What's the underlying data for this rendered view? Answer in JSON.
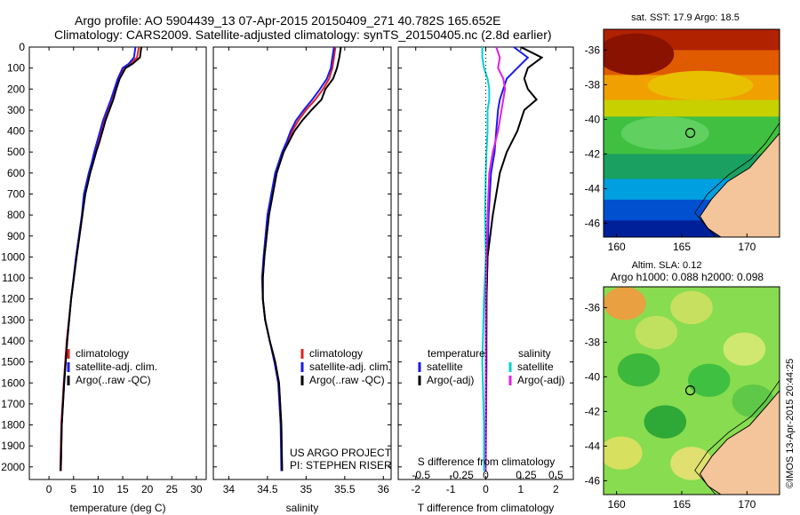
{
  "header": {
    "title_line1": "Argo profile: AO 5904439_13 07-Apr-2015 20150409_271 40.782S 165.652E",
    "title_line2": "Climatology: CARS2009. Satellite-adjusted climatology: synTS_20150405.nc (2.8d earlier)"
  },
  "chart_data": [
    {
      "type": "line",
      "xlabel": "temperature (deg C)",
      "ylabel": "",
      "xlim": [
        -4,
        32
      ],
      "ylim": [
        2060,
        0
      ],
      "xticks": [
        0,
        5,
        10,
        15,
        20,
        25,
        30
      ],
      "yticks": [
        0,
        100,
        200,
        300,
        400,
        500,
        600,
        700,
        800,
        900,
        1000,
        1100,
        1200,
        1300,
        1400,
        1500,
        1600,
        1700,
        1800,
        1900,
        2000
      ],
      "legend": [
        "climatology",
        "satellite-adj. clim.",
        "Argo(..raw -QC)"
      ],
      "series": [
        {
          "name": "climatology",
          "color": "#e02020",
          "x": [
            18.3,
            17.9,
            16.5,
            15.2,
            14.2,
            13.5,
            12.7,
            12.0,
            11.2,
            10.6,
            10.0,
            9.3,
            8.8,
            8.2,
            7.7,
            7.2,
            6.8,
            5.6,
            4.5,
            3.6,
            3.0,
            2.5,
            2.3
          ],
          "y": [
            0,
            50,
            80,
            100,
            150,
            200,
            250,
            300,
            350,
            400,
            450,
            500,
            550,
            600,
            650,
            700,
            800,
            1000,
            1200,
            1400,
            1600,
            1800,
            2020
          ]
        },
        {
          "name": "satellite-adj. clim.",
          "color": "#1a1aee",
          "x": [
            17.6,
            17.3,
            16.2,
            15.0,
            14.0,
            13.3,
            12.6,
            11.8,
            11.0,
            10.4,
            9.8,
            9.2,
            8.7,
            8.1,
            7.6,
            7.1,
            6.7,
            5.5,
            4.5,
            3.7,
            3.1,
            2.6,
            2.4
          ],
          "y": [
            0,
            50,
            80,
            100,
            150,
            200,
            250,
            300,
            350,
            400,
            450,
            500,
            550,
            600,
            650,
            700,
            800,
            1000,
            1200,
            1400,
            1600,
            1800,
            2020
          ]
        },
        {
          "name": "Argo(..raw -QC)",
          "color": "#000000",
          "x": [
            18.8,
            18.5,
            17.0,
            15.6,
            14.4,
            13.7,
            13.1,
            12.3,
            11.5,
            10.9,
            10.3,
            9.6,
            9.0,
            8.4,
            7.9,
            7.4,
            6.8,
            5.6,
            4.5,
            3.7,
            3.1,
            2.6,
            2.4
          ],
          "y": [
            0,
            50,
            80,
            100,
            150,
            200,
            250,
            300,
            350,
            400,
            450,
            500,
            550,
            600,
            650,
            700,
            800,
            1000,
            1200,
            1400,
            1600,
            1800,
            2020
          ]
        }
      ]
    },
    {
      "type": "line",
      "xlabel": "salinity",
      "ylabel": "",
      "xlim": [
        33.8,
        36.1
      ],
      "ylim": [
        2060,
        0
      ],
      "xticks": [
        34,
        34.5,
        35,
        35.5,
        36
      ],
      "yticks": [],
      "legend": [
        "climatology",
        "satellite-adj. clim.",
        "Argo(..raw -QC)"
      ],
      "annotations": [
        "US ARGO PROJECT",
        "PI: STEPHEN RISER"
      ],
      "series": [
        {
          "name": "climatology",
          "color": "#e02020",
          "x": [
            35.38,
            35.36,
            35.34,
            35.3,
            35.22,
            35.12,
            35.0,
            34.9,
            34.82,
            34.77,
            34.7,
            34.62,
            34.52,
            34.46,
            34.44,
            34.44,
            34.47,
            34.53,
            34.6,
            34.65,
            34.68,
            34.69
          ],
          "y": [
            0,
            50,
            100,
            150,
            200,
            250,
            300,
            350,
            400,
            450,
            500,
            600,
            800,
            1000,
            1100,
            1200,
            1300,
            1400,
            1500,
            1600,
            1800,
            2020
          ]
        },
        {
          "name": "satellite-adj. clim.",
          "color": "#1a1aee",
          "x": [
            35.36,
            35.34,
            35.32,
            35.27,
            35.18,
            35.08,
            34.97,
            34.87,
            34.8,
            34.75,
            34.69,
            34.6,
            34.5,
            34.45,
            34.43,
            34.44,
            34.47,
            34.53,
            34.59,
            34.64,
            34.67,
            34.68
          ],
          "y": [
            0,
            50,
            100,
            150,
            200,
            250,
            300,
            350,
            400,
            450,
            500,
            600,
            800,
            1000,
            1100,
            1200,
            1300,
            1400,
            1500,
            1600,
            1800,
            2020
          ]
        },
        {
          "name": "Argo(..raw -QC)",
          "color": "#000000",
          "x": [
            35.45,
            35.43,
            35.4,
            35.35,
            35.25,
            35.2,
            35.07,
            34.95,
            34.85,
            34.78,
            34.71,
            34.62,
            34.52,
            34.46,
            34.44,
            34.44,
            34.47,
            34.53,
            34.6,
            34.65,
            34.68,
            34.69
          ],
          "y": [
            0,
            50,
            100,
            150,
            200,
            250,
            300,
            350,
            400,
            450,
            500,
            600,
            800,
            1000,
            1100,
            1200,
            1300,
            1400,
            1500,
            1600,
            1800,
            2020
          ]
        }
      ]
    },
    {
      "type": "line",
      "xlabel": "T difference from climatology",
      "xlabel_top": "S difference from climatology",
      "ylabel": "",
      "xlim": [
        -2.5,
        2.5
      ],
      "ylim": [
        2060,
        0
      ],
      "xticks": [
        -2,
        -1,
        0,
        1,
        2
      ],
      "xticks_S": [
        "-0.5",
        "-0.25",
        "0",
        "0.25",
        "0.5"
      ],
      "yticks": [],
      "legend_groups": [
        {
          "title": "temperature",
          "items": [
            "satellite",
            "Argo(-adj)"
          ]
        },
        {
          "title": "salinity",
          "items": [
            "satellite",
            "Argo(-adj)"
          ]
        }
      ],
      "series": [
        {
          "name": "temperature satellite",
          "color": "#1a1aee",
          "x": [
            0.8,
            1.2,
            0.9,
            0.6,
            0.5,
            0.4,
            0.35,
            0.3,
            0.25,
            0.15,
            0.08,
            0.05,
            0.02,
            0.02,
            0.01,
            0.0
          ],
          "y": [
            0,
            50,
            100,
            150,
            200,
            250,
            300,
            400,
            500,
            600,
            800,
            1000,
            1200,
            1500,
            1800,
            2020
          ]
        },
        {
          "name": "temperature Argo(-adj)",
          "color": "#000000",
          "x": [
            1.0,
            1.6,
            1.2,
            1.1,
            1.2,
            1.45,
            1.1,
            0.9,
            0.6,
            0.4,
            0.2,
            0.05,
            0.02,
            0.01,
            0.0,
            0.0
          ],
          "y": [
            0,
            50,
            100,
            150,
            200,
            250,
            300,
            400,
            500,
            600,
            800,
            1000,
            1200,
            1500,
            1800,
            2020
          ]
        },
        {
          "name": "salinity satellite",
          "color": "#00d0d0",
          "x": [
            -0.1,
            -0.1,
            -0.05,
            0.05,
            0.1,
            0.1,
            0.05,
            0.05,
            0.02,
            0.0,
            -0.02,
            0.0,
            -0.05,
            -0.1,
            -0.05,
            -0.05
          ],
          "y": [
            0,
            50,
            100,
            150,
            200,
            250,
            300,
            400,
            500,
            600,
            800,
            1000,
            1200,
            1500,
            1800,
            2020
          ]
        },
        {
          "name": "salinity Argo(-adj)",
          "color": "#e020e0",
          "x": [
            0.3,
            0.4,
            0.35,
            0.5,
            0.55,
            0.5,
            0.45,
            0.35,
            0.2,
            0.1,
            0.05,
            0.02,
            0.0,
            0.0,
            0.0,
            0.0
          ],
          "y": [
            0,
            50,
            100,
            150,
            200,
            250,
            300,
            400,
            500,
            600,
            800,
            1000,
            1200,
            1500,
            1800,
            2020
          ]
        }
      ]
    },
    {
      "type": "heatmap",
      "title": "sat. SST: 17.9 Argo: 18.5",
      "xlim": [
        159,
        172.5
      ],
      "ylim": [
        -46.8,
        -34.8
      ],
      "xticks": [
        160,
        165,
        170
      ],
      "yticks": [
        -36,
        -38,
        -40,
        -42,
        -44,
        -46
      ],
      "marker": {
        "lon": 165.652,
        "lat": -40.782
      }
    },
    {
      "type": "heatmap",
      "title": "Altim. SLA: 0.12",
      "subtitle": "Argo h1000: 0.088 h2000: 0.098",
      "xlim": [
        159,
        172.5
      ],
      "ylim": [
        -46.8,
        -34.8
      ],
      "xticks": [
        160,
        165,
        170
      ],
      "yticks": [
        -36,
        -38,
        -40,
        -42,
        -44,
        -46
      ],
      "marker": {
        "lon": 165.652,
        "lat": -40.782
      }
    }
  ],
  "side_label": "©IMOS 13-Apr-2015 20:44:25"
}
